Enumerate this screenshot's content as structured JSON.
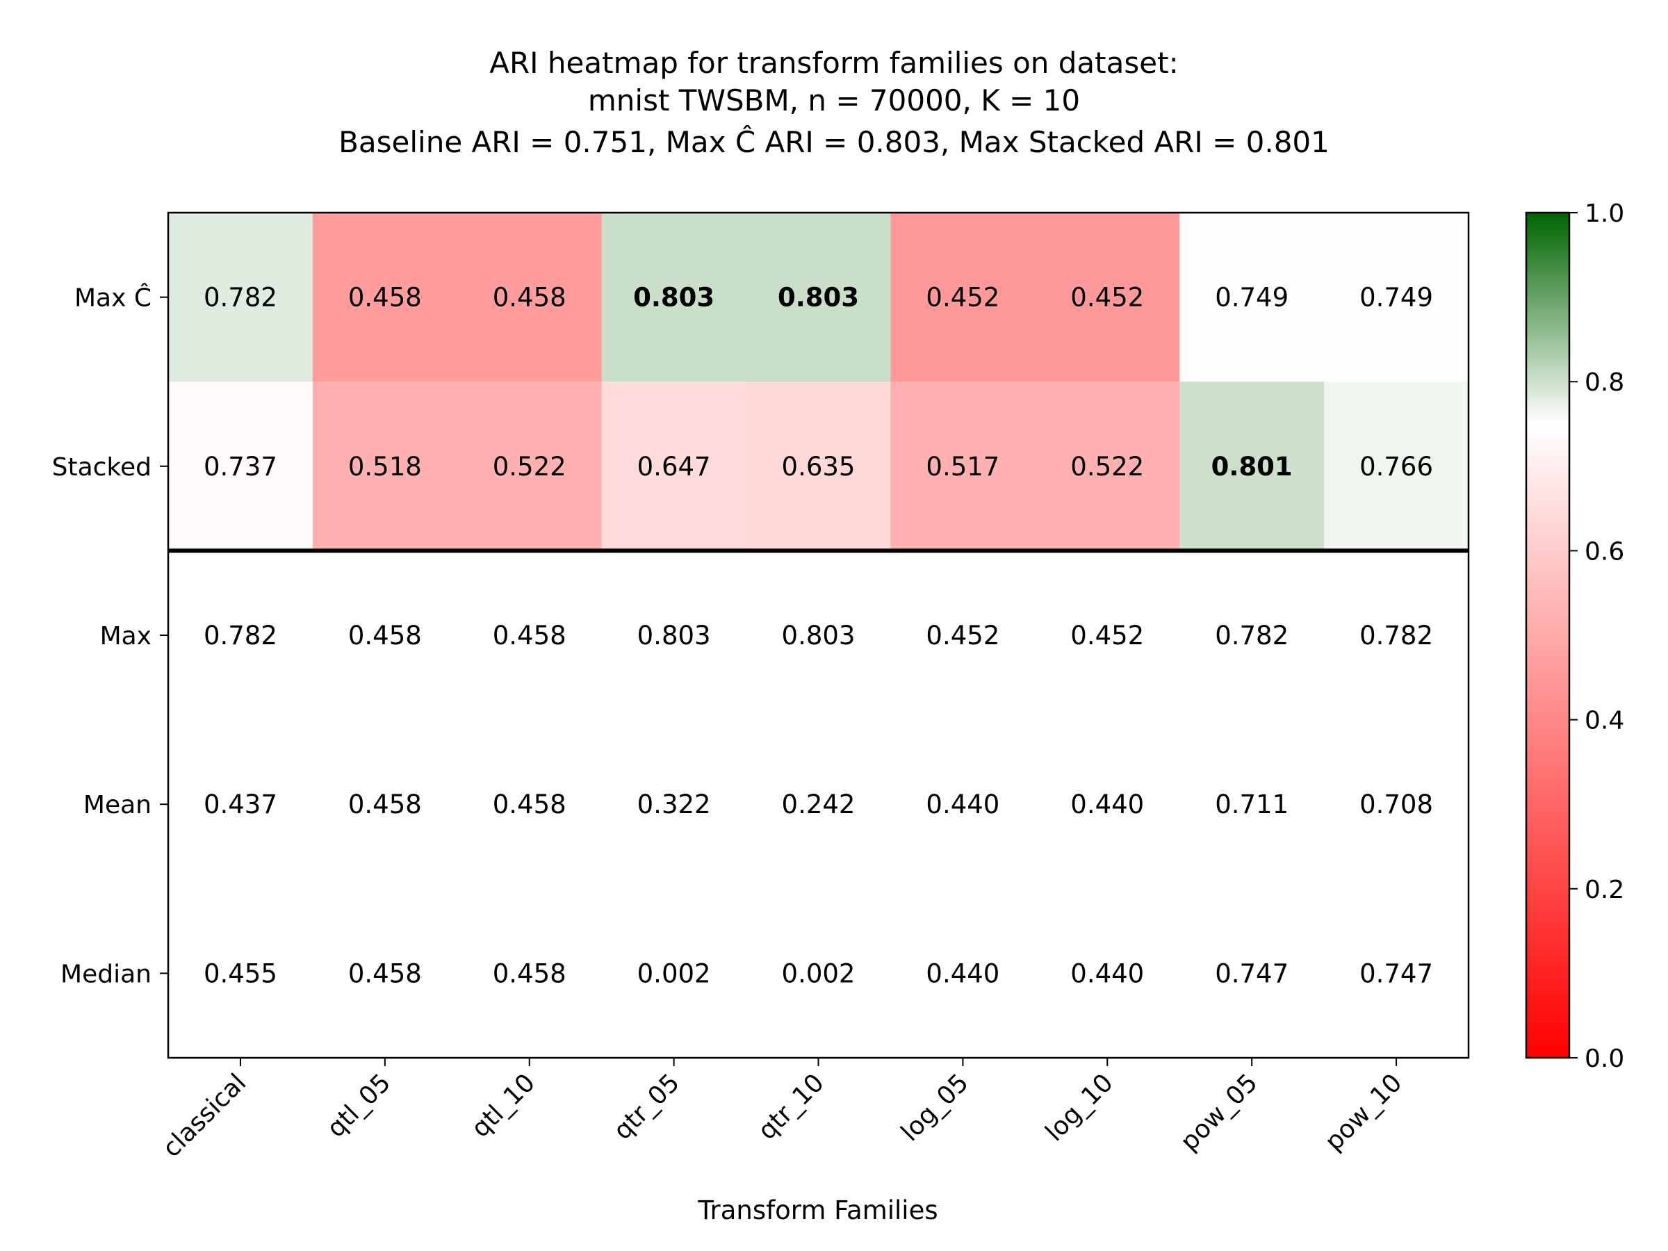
{
  "chart_data": {
    "type": "heatmap",
    "title_lines": [
      "ARI heatmap for transform families on dataset:",
      "mnist TWSBM, n = 70000, K = 10",
      "Baseline ARI = 0.751, Max Ĉ ARI = 0.803, Max Stacked ARI = 0.801"
    ],
    "xlabel": "Transform Families",
    "ylabel": "",
    "columns": [
      "classical",
      "qtl_05",
      "qtl_10",
      "qtr_05",
      "qtr_10",
      "log_05",
      "log_10",
      "pow_05",
      "pow_10"
    ],
    "rows": [
      {
        "name": "Max Ĉ",
        "colored": true,
        "values": [
          0.782,
          0.458,
          0.458,
          0.803,
          0.803,
          0.452,
          0.452,
          0.749,
          0.749
        ],
        "labels": [
          "0.782",
          "0.458",
          "0.458",
          "0.803",
          "0.803",
          "0.452",
          "0.452",
          "0.749",
          "0.749"
        ],
        "bold": [
          false,
          false,
          false,
          true,
          true,
          false,
          false,
          false,
          false
        ]
      },
      {
        "name": "Stacked",
        "colored": true,
        "values": [
          0.737,
          0.518,
          0.522,
          0.647,
          0.635,
          0.517,
          0.522,
          0.801,
          0.766
        ],
        "labels": [
          "0.737",
          "0.518",
          "0.522",
          "0.647",
          "0.635",
          "0.517",
          "0.522",
          "0.801",
          "0.766"
        ],
        "bold": [
          false,
          false,
          false,
          false,
          false,
          false,
          false,
          true,
          false
        ]
      },
      {
        "name": "Max",
        "colored": false,
        "values": [
          0.782,
          0.458,
          0.458,
          0.803,
          0.803,
          0.452,
          0.452,
          0.782,
          0.782
        ],
        "labels": [
          "0.782",
          "0.458",
          "0.458",
          "0.803",
          "0.803",
          "0.452",
          "0.452",
          "0.782",
          "0.782"
        ],
        "bold": [
          false,
          false,
          false,
          false,
          false,
          false,
          false,
          false,
          false
        ]
      },
      {
        "name": "Mean",
        "colored": false,
        "values": [
          0.437,
          0.458,
          0.458,
          0.322,
          0.242,
          0.44,
          0.44,
          0.711,
          0.708
        ],
        "labels": [
          "0.437",
          "0.458",
          "0.458",
          "0.322",
          "0.242",
          "0.440",
          "0.440",
          "0.711",
          "0.708"
        ],
        "bold": [
          false,
          false,
          false,
          false,
          false,
          false,
          false,
          false,
          false
        ]
      },
      {
        "name": "Median",
        "colored": false,
        "values": [
          0.455,
          0.458,
          0.458,
          0.002,
          0.002,
          0.44,
          0.44,
          0.747,
          0.747
        ],
        "labels": [
          "0.455",
          "0.458",
          "0.458",
          "0.002",
          "0.002",
          "0.440",
          "0.440",
          "0.747",
          "0.747"
        ],
        "bold": [
          false,
          false,
          false,
          false,
          false,
          false,
          false,
          false,
          false
        ]
      }
    ],
    "colorbar": {
      "range": [
        0.0,
        1.0
      ],
      "center": 0.751,
      "ticks": [
        "0.0",
        "0.2",
        "0.4",
        "0.6",
        "0.8",
        "1.0"
      ],
      "low_color": "#ff0000",
      "mid_color": "#ffffff",
      "high_color": "#006400"
    },
    "separator_after_row": 2,
    "grid": false
  }
}
